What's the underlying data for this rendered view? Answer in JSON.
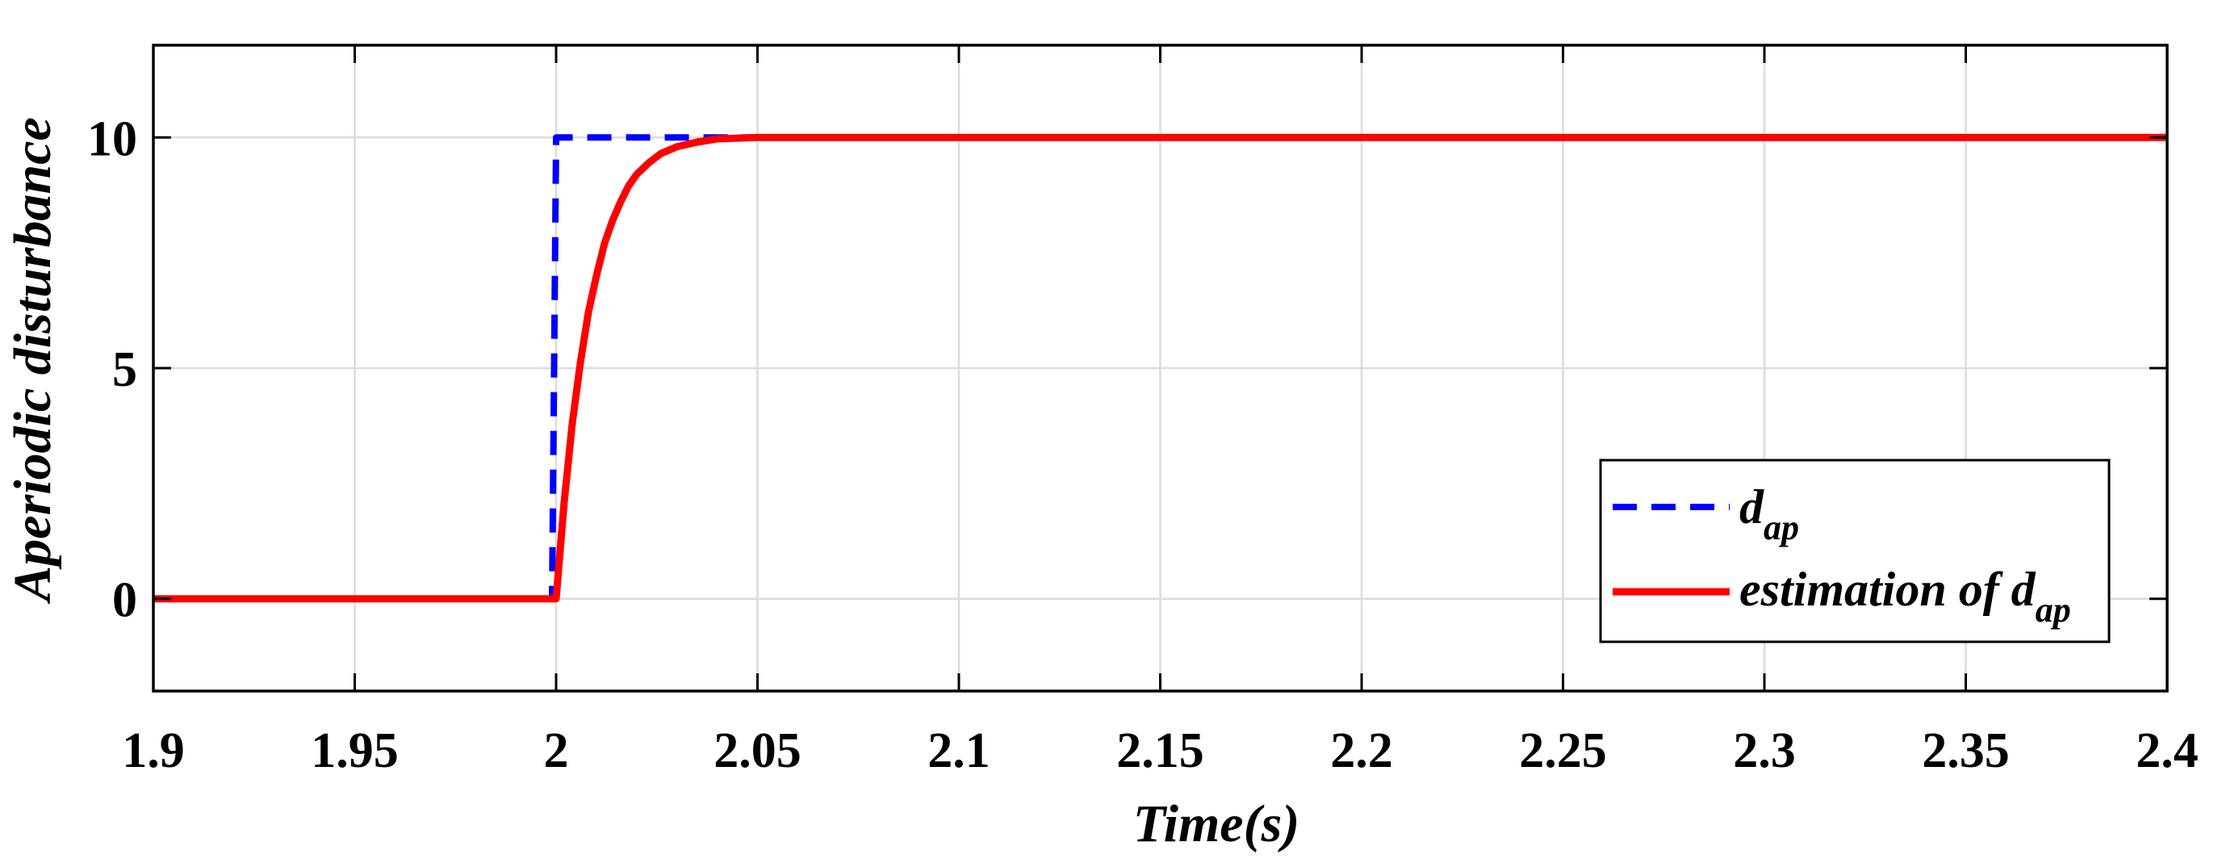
{
  "chart_data": {
    "type": "line",
    "xlabel": "Time(s)",
    "ylabel": "Aperiodic disturbance",
    "xlim": [
      1.9,
      2.4
    ],
    "ylim": [
      -2,
      12
    ],
    "grid": true,
    "legend_position": "bottom-right",
    "x_ticks": [
      1.9,
      1.95,
      2.0,
      2.05,
      2.1,
      2.15,
      2.2,
      2.25,
      2.3,
      2.35,
      2.4
    ],
    "x_tick_labels": [
      "1.9",
      "1.95",
      "2",
      "2.05",
      "2.1",
      "2.15",
      "2.2",
      "2.25",
      "2.3",
      "2.35",
      "2.4"
    ],
    "y_ticks": [
      0,
      5,
      10
    ],
    "y_tick_labels": [
      "0",
      "5",
      "10"
    ],
    "series": [
      {
        "legend_main": "d",
        "legend_sub": "ap",
        "color": "#0000ff",
        "style": "dashed",
        "x": [
          1.9,
          1.998,
          1.999,
          2.0,
          2.001,
          2.4
        ],
        "y": [
          0,
          0,
          0,
          10,
          10,
          10
        ]
      },
      {
        "legend_main": "estimation of d",
        "legend_sub": "ap",
        "color": "#ff0000",
        "style": "solid",
        "x": [
          1.9,
          2.0,
          2.002,
          2.004,
          2.006,
          2.008,
          2.01,
          2.012,
          2.014,
          2.016,
          2.018,
          2.02,
          2.023,
          2.026,
          2.03,
          2.035,
          2.04,
          2.05,
          2.06,
          2.4
        ],
        "y": [
          0,
          0,
          2.1,
          3.8,
          5.1,
          6.2,
          7.0,
          7.7,
          8.2,
          8.6,
          8.95,
          9.2,
          9.45,
          9.65,
          9.8,
          9.9,
          9.97,
          10.0,
          10.0,
          10.0
        ]
      }
    ]
  }
}
